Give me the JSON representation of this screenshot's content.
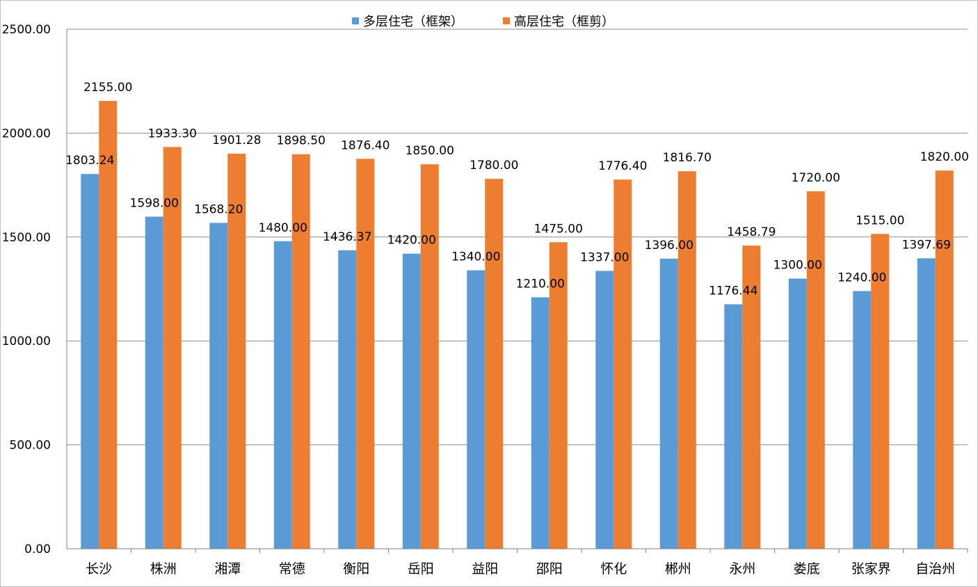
{
  "chart_data": {
    "type": "bar",
    "title": "",
    "xlabel": "",
    "ylabel": "",
    "ylim": [
      0,
      2500
    ],
    "yticks": [
      "0.00",
      "500.00",
      "1000.00",
      "1500.00",
      "2000.00",
      "2500.00"
    ],
    "grid": true,
    "legend_position": "top-center",
    "categories": [
      "长沙",
      "株洲",
      "湘潭",
      "常德",
      "衡阳",
      "岳阳",
      "益阳",
      "邵阳",
      "怀化",
      "郴州",
      "永州",
      "娄底",
      "张家界",
      "自治州"
    ],
    "series": [
      {
        "name": "多层住宅（框架）",
        "color": "#5b9bd5",
        "values": [
          1803.24,
          1598.0,
          1568.2,
          1480.0,
          1436.37,
          1420.0,
          1340.0,
          1210.0,
          1337.0,
          1396.0,
          1176.44,
          1300.0,
          1240.0,
          1397.69
        ],
        "labels": [
          "1803.24",
          "1598.00",
          "1568.20",
          "1480.00",
          "1436.37",
          "1420.00",
          "1340.00",
          "1210.00",
          "1337.00",
          "1396.00",
          "1176.44",
          "1300.00",
          "1240.00",
          "1397.69"
        ]
      },
      {
        "name": "高层住宅（框剪）",
        "color": "#ed7d31",
        "values": [
          2155.0,
          1933.3,
          1901.28,
          1898.5,
          1876.4,
          1850.0,
          1780.0,
          1475.0,
          1776.4,
          1816.7,
          1458.79,
          1720.0,
          1515.0,
          1820.0
        ],
        "labels": [
          "2155.00",
          "1933.30",
          "1901.28",
          "1898.50",
          "1876.40",
          "1850.00",
          "1780.00",
          "1475.00",
          "1776.40",
          "1816.70",
          "1458.79",
          "1720.00",
          "1515.00",
          "1820.00"
        ]
      }
    ]
  }
}
